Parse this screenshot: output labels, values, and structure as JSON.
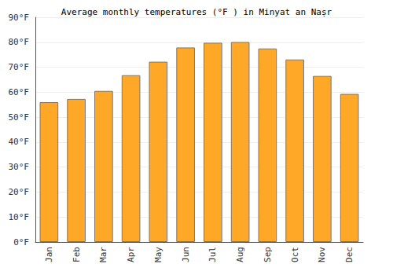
{
  "chart_data": {
    "type": "bar",
    "title": "Average monthly temperatures (°F ) in Minyat an Naṣr",
    "categories": [
      "Jan",
      "Feb",
      "Mar",
      "Apr",
      "May",
      "Jun",
      "Jul",
      "Aug",
      "Sep",
      "Oct",
      "Nov",
      "Dec"
    ],
    "values": [
      56.0,
      57.3,
      60.5,
      66.8,
      72.2,
      77.9,
      79.8,
      80.1,
      77.5,
      73.1,
      66.5,
      59.3
    ],
    "color": "#ffa726",
    "ylim": [
      0,
      90
    ],
    "yticks": [
      {
        "value": 0,
        "label": "0°F"
      },
      {
        "value": 10,
        "label": "10°F"
      },
      {
        "value": 20,
        "label": "20°F"
      },
      {
        "value": 30,
        "label": "30°F"
      },
      {
        "value": 40,
        "label": "40°F"
      },
      {
        "value": 50,
        "label": "50°F"
      },
      {
        "value": 60,
        "label": "60°F"
      },
      {
        "value": 70,
        "label": "70°F"
      },
      {
        "value": 80,
        "label": "80°F"
      },
      {
        "value": 90,
        "label": "90°F"
      }
    ],
    "grid": true
  }
}
